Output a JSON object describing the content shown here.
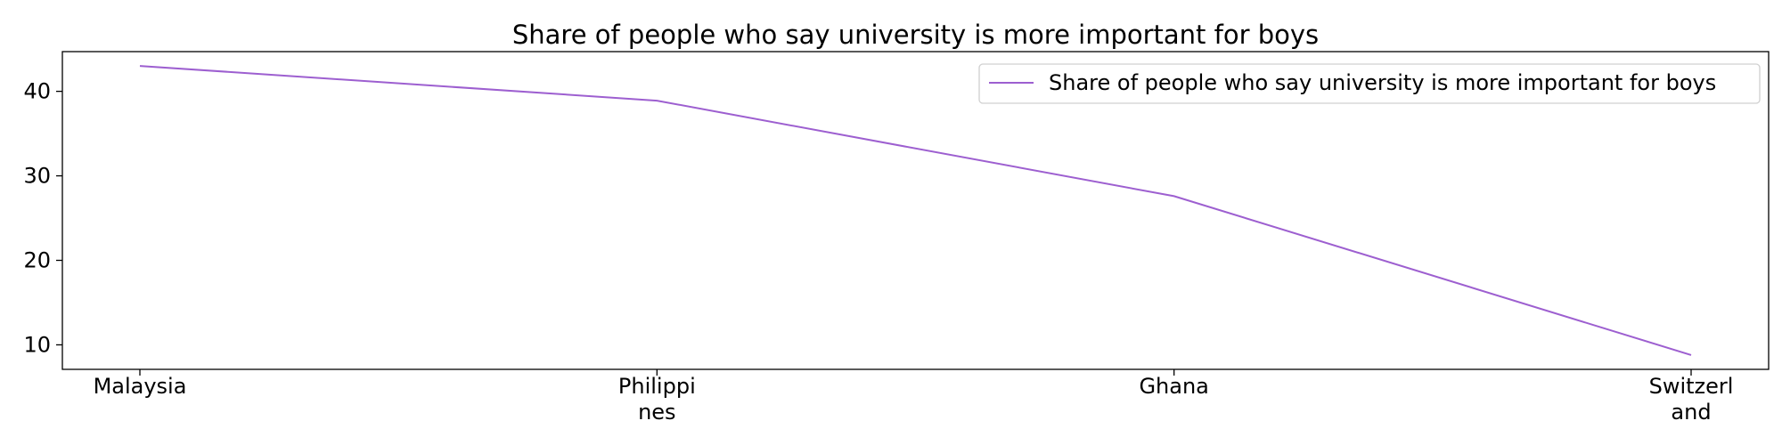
{
  "chart_data": {
    "type": "line",
    "title": "Share of people who say university is more important for boys",
    "xlabel": "",
    "ylabel": "",
    "categories": [
      "Malaysia",
      "Philippines",
      "Ghana",
      "Switzerland"
    ],
    "category_labels": [
      [
        "Malaysia"
      ],
      [
        "Philippi",
        "nes"
      ],
      [
        "Ghana"
      ],
      [
        "Switzerl",
        "and"
      ]
    ],
    "series": [
      {
        "name": "Share of people who say university is more important for boys",
        "values": [
          43.0,
          38.9,
          27.6,
          8.8
        ],
        "color": "#9d5fd0"
      }
    ],
    "ylim": [
      7.1,
      44.7
    ],
    "yticks": [
      10,
      20,
      30,
      40
    ],
    "grid": false,
    "legend_position": "top-right"
  }
}
